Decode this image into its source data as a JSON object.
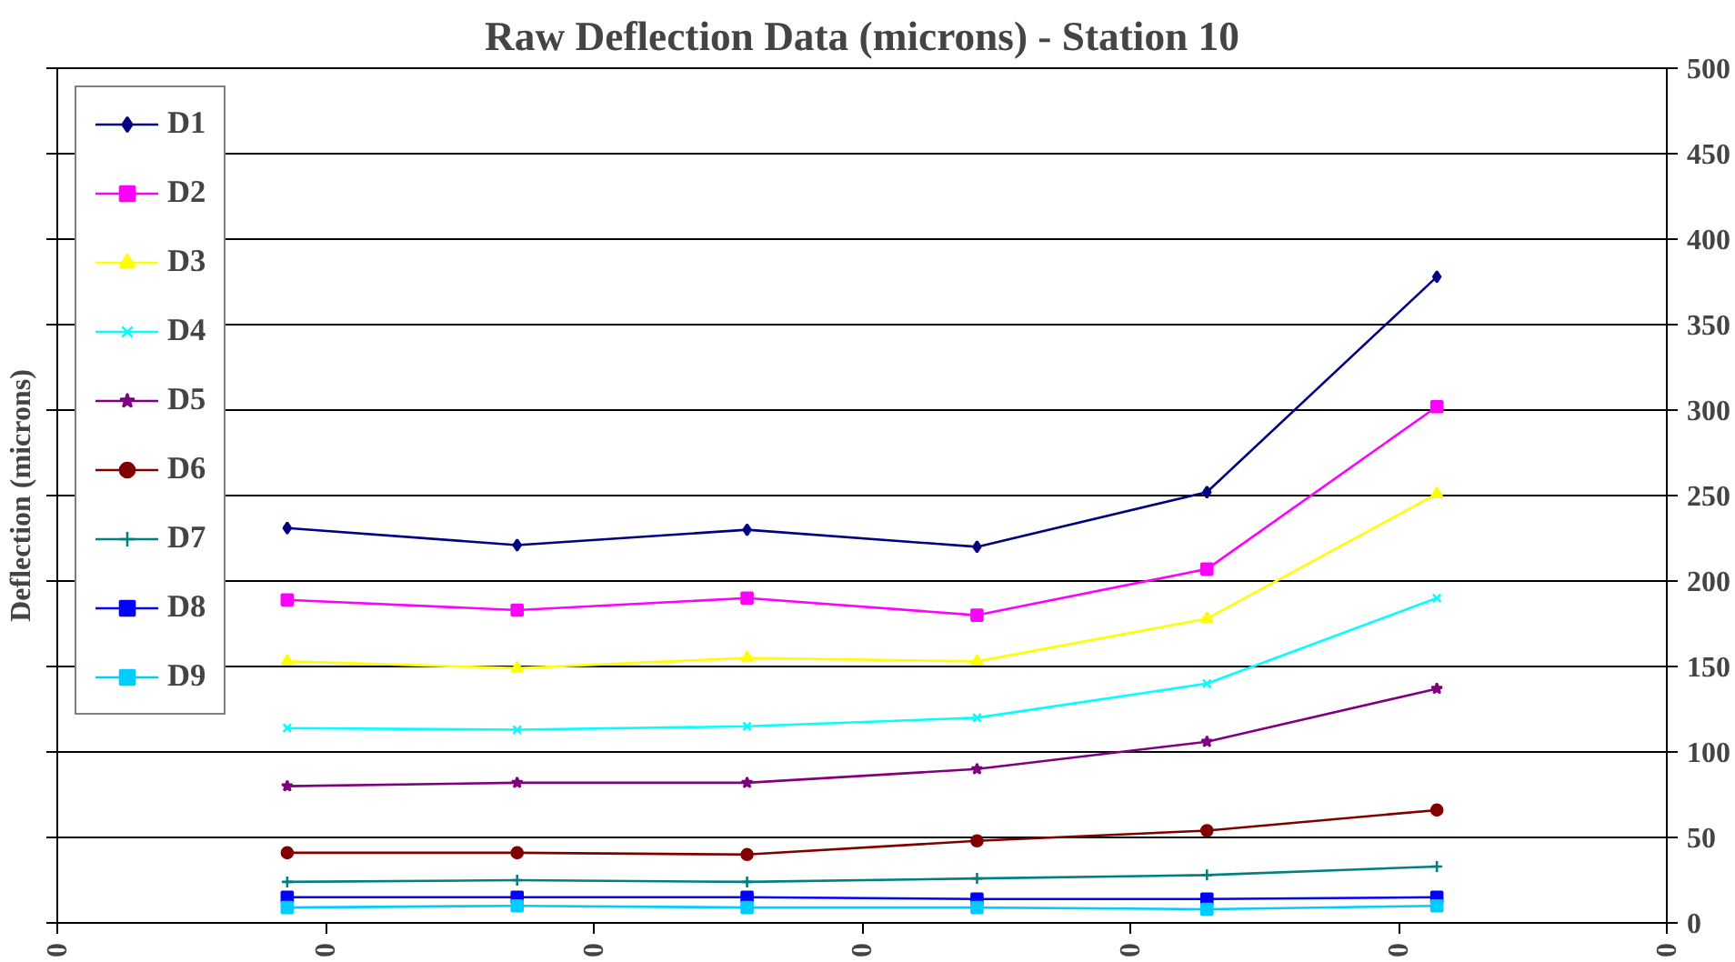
{
  "chart_data": {
    "type": "line",
    "title": "Raw Deflection Data (microns) - Station 10",
    "ylabel": "Deflection (microns)",
    "categories": [
      null,
      null,
      null,
      null,
      null,
      null
    ],
    "annotations": [
      "0",
      "0",
      "0",
      "0",
      "0",
      "0",
      "0"
    ],
    "ylim": [
      0,
      500
    ],
    "yticks": [
      0,
      50,
      100,
      150,
      200,
      250,
      300,
      350,
      400,
      450,
      500
    ],
    "grid": "y",
    "legend": "top left",
    "series": [
      {
        "name": "D1",
        "color": "#000080",
        "marker": "diamond",
        "values": [
          231,
          221,
          230,
          220,
          252,
          378
        ]
      },
      {
        "name": "D2",
        "color": "#ff00ff",
        "marker": "square",
        "values": [
          189,
          183,
          190,
          180,
          207,
          302
        ]
      },
      {
        "name": "D3",
        "color": "#ffff00",
        "marker": "triangle",
        "values": [
          153,
          149,
          155,
          153,
          178,
          251
        ]
      },
      {
        "name": "D4",
        "color": "#00ffff",
        "marker": "x",
        "values": [
          114,
          113,
          115,
          120,
          140,
          190
        ]
      },
      {
        "name": "D5",
        "color": "#800080",
        "marker": "star",
        "values": [
          80,
          82,
          82,
          90,
          106,
          137
        ]
      },
      {
        "name": "D6",
        "color": "#800000",
        "marker": "circle",
        "values": [
          41,
          41,
          40,
          48,
          54,
          66
        ]
      },
      {
        "name": "D7",
        "color": "#008080",
        "marker": "cross",
        "values": [
          24,
          25,
          24,
          26,
          28,
          33
        ]
      },
      {
        "name": "D8",
        "color": "#0000ff",
        "marker": "square",
        "values": [
          15,
          15,
          15,
          14,
          14,
          15
        ]
      },
      {
        "name": "D9",
        "color": "#00ccff",
        "marker": "square",
        "values": [
          9,
          10,
          9,
          9,
          8,
          10
        ]
      }
    ]
  }
}
